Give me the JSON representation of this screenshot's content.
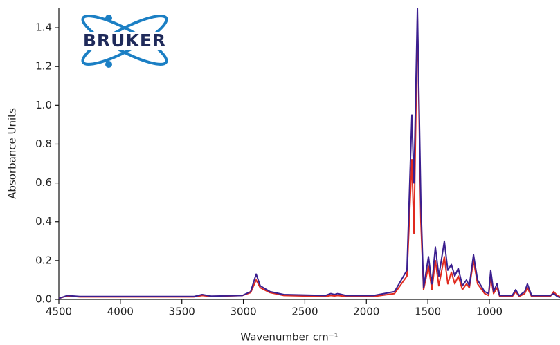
{
  "logo": {
    "text": "BRUKER"
  },
  "chart_data": {
    "type": "line",
    "xlabel": "Wavenumber cm⁻¹",
    "ylabel": "Absorbance Units",
    "x": [
      4500,
      4432,
      4331,
      3403,
      3335,
      3262,
      3009,
      2941,
      2896,
      2863,
      2784,
      2671,
      2334,
      2289,
      2260,
      2232,
      2165,
      1940,
      1771,
      1670,
      1630,
      1613,
      1585,
      1557,
      1535,
      1495,
      1467,
      1439,
      1411,
      1366,
      1338,
      1309,
      1281,
      1253,
      1219,
      1186,
      1163,
      1129,
      1096,
      1039,
      1006,
      989,
      966,
      938,
      916,
      814,
      786,
      758,
      713,
      691,
      657,
      505,
      477,
      449,
      426
    ],
    "series": [
      {
        "color": "#e02a1f",
        "values": [
          0.005,
          0.018,
          0.013,
          0.013,
          0.02,
          0.015,
          0.02,
          0.035,
          0.1,
          0.06,
          0.035,
          0.02,
          0.015,
          0.02,
          0.018,
          0.02,
          0.015,
          0.015,
          0.03,
          0.12,
          0.72,
          0.34,
          1.45,
          0.4,
          0.05,
          0.17,
          0.05,
          0.2,
          0.07,
          0.22,
          0.08,
          0.14,
          0.08,
          0.12,
          0.05,
          0.08,
          0.06,
          0.2,
          0.08,
          0.03,
          0.02,
          0.12,
          0.03,
          0.06,
          0.015,
          0.015,
          0.04,
          0.015,
          0.03,
          0.06,
          0.015,
          0.015,
          0.04,
          0.02,
          0.015
        ]
      },
      {
        "color": "#3b1f8f",
        "values": [
          0.005,
          0.02,
          0.015,
          0.015,
          0.025,
          0.017,
          0.02,
          0.04,
          0.13,
          0.07,
          0.04,
          0.025,
          0.02,
          0.03,
          0.025,
          0.03,
          0.02,
          0.02,
          0.04,
          0.15,
          0.95,
          0.6,
          1.5,
          0.5,
          0.06,
          0.22,
          0.08,
          0.27,
          0.12,
          0.3,
          0.15,
          0.18,
          0.12,
          0.16,
          0.07,
          0.1,
          0.07,
          0.23,
          0.1,
          0.04,
          0.03,
          0.15,
          0.04,
          0.08,
          0.02,
          0.02,
          0.05,
          0.02,
          0.04,
          0.08,
          0.02,
          0.02,
          0.03,
          0.015,
          0.01
        ]
      }
    ],
    "xlim": [
      4500,
      426
    ],
    "ylim": [
      0,
      1.5
    ],
    "xticks": [
      4500,
      4000,
      3500,
      3000,
      2500,
      2000,
      1500,
      1000
    ],
    "yticks": [
      {
        "value": 0,
        "label": "0.0"
      },
      0.2,
      0.4,
      0.6,
      0.8,
      {
        "value": 1,
        "label": "1.0"
      },
      1.2,
      1.4
    ]
  }
}
